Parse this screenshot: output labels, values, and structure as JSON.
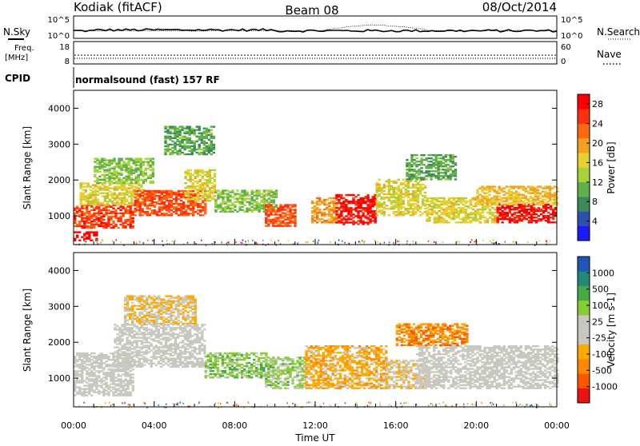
{
  "header": {
    "station": "Kodiak (fitACF)",
    "beam": "Beam 08",
    "date": "08/Oct/2014"
  },
  "status_panels": {
    "nsky_label": "N.Sky",
    "nsearch_label": "N.Search",
    "noise_ticks": [
      "10^5",
      "10^0"
    ],
    "freq_label_1": "Freq.",
    "freq_label_2": "[MHz]",
    "freq_ticks": [
      "18",
      "8"
    ],
    "nave_label": "Nave",
    "nave_ticks": [
      "60",
      "0"
    ],
    "cpid_label": "CPID",
    "cpid_value": "normalsound (fast) 157 RF"
  },
  "colors": {
    "power_scale": [
      "#1a1aff",
      "#2f4fb0",
      "#3a8a5a",
      "#5fb04a",
      "#a9d23a",
      "#e8d030",
      "#f5a020",
      "#ff6a10",
      "#ff3010",
      "#ff0000"
    ],
    "velocity_scale": [
      "#ee1111",
      "#ff5500",
      "#ff8800",
      "#ffaa00",
      "#c8c8c0",
      "#c8c8c0",
      "#88cc33",
      "#44aa44",
      "#228877",
      "#2255bb"
    ]
  },
  "chart_data": [
    {
      "type": "heatmap",
      "parameter": "power",
      "ylabel": "Slant Range [km]",
      "yticks": [
        "1000",
        "2000",
        "3000",
        "4000"
      ],
      "ylim": [
        200,
        4500
      ],
      "x_range_hours": [
        0,
        24
      ],
      "colorbar_label": "Power [dB]",
      "colorbar_ticks": [
        "4",
        "8",
        "12",
        "16",
        "20",
        "24",
        "28"
      ],
      "colorbar_range": [
        0,
        30
      ],
      "bands": [
        {
          "t0": 0.0,
          "t1": 1.2,
          "r0": 300,
          "r1": 550,
          "value": 29
        },
        {
          "t0": 0.0,
          "t1": 3.0,
          "r0": 650,
          "r1": 1300,
          "value": 25
        },
        {
          "t0": 0.3,
          "t1": 3.5,
          "r0": 1300,
          "r1": 1900,
          "value": 16
        },
        {
          "t0": 1.0,
          "t1": 4.0,
          "r0": 1900,
          "r1": 2600,
          "value": 12
        },
        {
          "t0": 3.0,
          "t1": 6.5,
          "r0": 1000,
          "r1": 1700,
          "value": 24
        },
        {
          "t0": 5.5,
          "t1": 7.0,
          "r0": 1400,
          "r1": 2300,
          "value": 16
        },
        {
          "t0": 4.5,
          "t1": 7.0,
          "r0": 2700,
          "r1": 3500,
          "value": 10
        },
        {
          "t0": 7.0,
          "t1": 10.0,
          "r0": 1100,
          "r1": 1700,
          "value": 12
        },
        {
          "t0": 9.5,
          "t1": 11.0,
          "r0": 700,
          "r1": 1300,
          "value": 24
        },
        {
          "t0": 11.8,
          "t1": 13.0,
          "r0": 800,
          "r1": 1500,
          "value": 20
        },
        {
          "t0": 13.0,
          "t1": 15.0,
          "r0": 750,
          "r1": 1600,
          "value": 28
        },
        {
          "t0": 15.0,
          "t1": 17.5,
          "r0": 1000,
          "r1": 2000,
          "value": 16
        },
        {
          "t0": 16.5,
          "t1": 19.0,
          "r0": 2000,
          "r1": 2700,
          "value": 10
        },
        {
          "t0": 17.5,
          "t1": 21.0,
          "r0": 800,
          "r1": 1500,
          "value": 16
        },
        {
          "t0": 21.0,
          "t1": 24.0,
          "r0": 800,
          "r1": 1300,
          "value": 28
        },
        {
          "t0": 20.0,
          "t1": 24.0,
          "r0": 1300,
          "r1": 1800,
          "value": 18
        }
      ]
    },
    {
      "type": "heatmap",
      "parameter": "velocity",
      "ylabel": "Slant Range [km]",
      "yticks": [
        "1000",
        "2000",
        "3000",
        "4000"
      ],
      "ylim": [
        200,
        4500
      ],
      "x_range_hours": [
        0,
        24
      ],
      "colorbar_label": "Velocity [m s-1]",
      "colorbar_ticks": [
        "1000",
        "500",
        "100",
        "25",
        "-25",
        "-100",
        "-500",
        "-1000"
      ],
      "colorbar_range": [
        -1000,
        1000
      ],
      "bands": [
        {
          "t0": 0.0,
          "t1": 3.0,
          "r0": 500,
          "r1": 1700,
          "value": 0
        },
        {
          "t0": 2.0,
          "t1": 6.5,
          "r0": 1300,
          "r1": 2500,
          "value": 0
        },
        {
          "t0": 2.5,
          "t1": 6.0,
          "r0": 2500,
          "r1": 3300,
          "value": -200
        },
        {
          "t0": 6.5,
          "t1": 9.5,
          "r0": 1000,
          "r1": 1700,
          "value": 300
        },
        {
          "t0": 9.5,
          "t1": 11.5,
          "r0": 700,
          "r1": 1600,
          "value": 250
        },
        {
          "t0": 11.5,
          "t1": 15.5,
          "r0": 700,
          "r1": 1900,
          "value": -300
        },
        {
          "t0": 15.5,
          "t1": 17.5,
          "r0": 700,
          "r1": 1500,
          "value": -150
        },
        {
          "t0": 17.0,
          "t1": 24.0,
          "r0": 700,
          "r1": 1900,
          "value": 0
        },
        {
          "t0": 16.0,
          "t1": 19.5,
          "r0": 1900,
          "r1": 2500,
          "value": -500
        }
      ]
    }
  ],
  "x_axis": {
    "label": "Time UT",
    "ticks": [
      "00:00",
      "04:00",
      "08:00",
      "12:00",
      "16:00",
      "20:00",
      "00:00"
    ]
  }
}
